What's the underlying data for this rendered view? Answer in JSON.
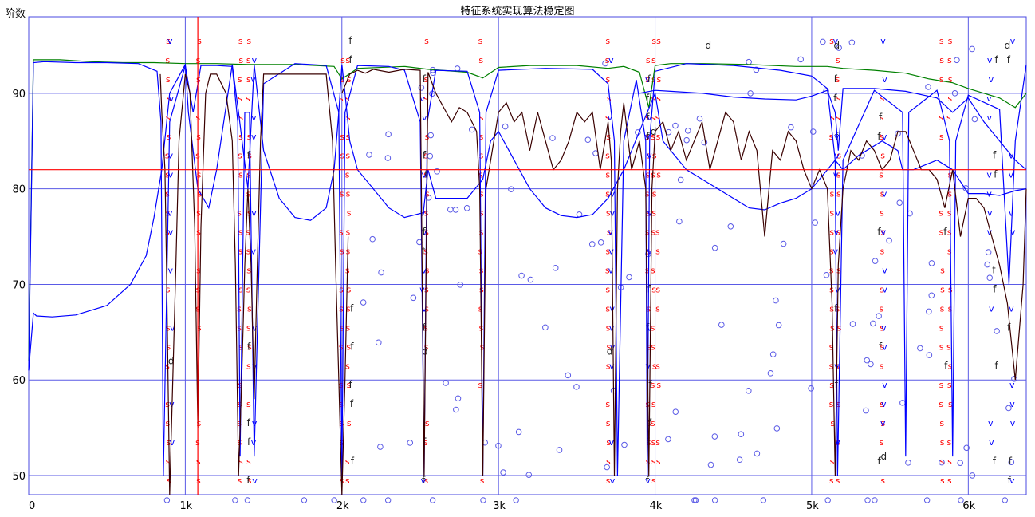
{
  "chart_data": {
    "type": "line",
    "title": "特征系统实现算法稳定图",
    "ylabel": "阶数",
    "xlabel": "",
    "xlim": [
      0,
      6370
    ],
    "ylim": [
      48,
      98
    ],
    "x_ticks": [
      0,
      1000,
      2000,
      3000,
      4000,
      5000,
      6000
    ],
    "x_tick_labels": [
      "0",
      "1k",
      "2k",
      "3k",
      "4k",
      "5k",
      "6k"
    ],
    "y_ticks": [
      50,
      60,
      70,
      80,
      90
    ],
    "y_tick_labels": [
      "50",
      "60",
      "70",
      "80",
      "90"
    ],
    "grid": true,
    "threshold_line": {
      "y": 82,
      "color": "#ff0000"
    },
    "red_vertical_line": {
      "x": 1080,
      "color": "#ff0000"
    },
    "series": [
      {
        "color": "#008000",
        "x": [
          0,
          30,
          200,
          400,
          600,
          800,
          1000,
          1200,
          1400,
          1700,
          1950,
          2000,
          2100,
          2400,
          2550,
          2800,
          2900,
          3000,
          3200,
          3500,
          3700,
          3800,
          3900,
          3960,
          4000,
          4100,
          4300,
          4600,
          4900,
          5100,
          5200,
          5400,
          5600,
          5750,
          5900,
          6000,
          6200,
          6300,
          6370
        ],
        "y": [
          62,
          93.5,
          93.5,
          93.3,
          93.2,
          93.2,
          93.1,
          93.1,
          93,
          93,
          92.8,
          91.5,
          92.6,
          92.8,
          92.5,
          92.2,
          91.6,
          92.7,
          92.9,
          92.9,
          92.6,
          92.8,
          92.2,
          88.5,
          92.9,
          93.1,
          93.1,
          93,
          92.8,
          92.8,
          92.6,
          92.4,
          92.1,
          91.5,
          91.1,
          90.5,
          89.5,
          88.5,
          90
        ]
      },
      {
        "color": "#0000ff",
        "x": [
          0,
          30,
          100,
          300,
          500,
          700,
          820,
          845,
          860,
          900,
          1000,
          1050,
          1100,
          1200,
          1300,
          1335,
          1350,
          1380,
          1410,
          1440,
          1500,
          1700,
          1900,
          1980,
          2000,
          2020,
          2100,
          2300,
          2400,
          2500,
          2525,
          2545,
          2600,
          2800,
          2880,
          2900,
          2920,
          3000,
          3300,
          3600,
          3700,
          3740,
          3760,
          3800,
          3880,
          3940,
          3950,
          3965,
          4000,
          4200,
          4500,
          4800,
          5000,
          5100,
          5150,
          5165,
          5200,
          5400,
          5580,
          5600,
          5620,
          5800,
          5880,
          5900,
          5920,
          6000,
          6200,
          6260,
          6300,
          6370
        ],
        "y": [
          61,
          93.2,
          93.3,
          93.2,
          93.2,
          93.1,
          92.3,
          87,
          50,
          87,
          92.9,
          88,
          92.9,
          92.9,
          92.8,
          87,
          52,
          88,
          88,
          52,
          91,
          93.1,
          92.9,
          88,
          50,
          88,
          92.9,
          92.8,
          92.4,
          87,
          50,
          87,
          92.4,
          92.3,
          88,
          50,
          88,
          92.4,
          92.6,
          92.5,
          91,
          85,
          50,
          85,
          91.4,
          85,
          50,
          85,
          92.3,
          93.1,
          92.9,
          92.4,
          91.8,
          90.5,
          83,
          50,
          83,
          90.3,
          88,
          52,
          88,
          90.3,
          85,
          52,
          85,
          89.8,
          88.3,
          70,
          85,
          93
        ]
      },
      {
        "color": "#0000ff",
        "x": [
          0,
          30,
          50,
          150,
          300,
          500,
          650,
          750,
          800,
          850,
          900,
          1000,
          1020,
          1080,
          1150,
          1200,
          1300,
          1340,
          1400,
          1440,
          1500,
          1600,
          1700,
          1800,
          1900,
          1950,
          1980,
          2000,
          2020,
          2050,
          2100,
          2200,
          2300,
          2400,
          2520,
          2550,
          2600,
          2800,
          2900,
          2950,
          3000,
          3100,
          3200,
          3300,
          3400,
          3500,
          3600,
          3700,
          3800,
          3900,
          4000,
          4050,
          4200,
          4400,
          4600,
          4700,
          4800,
          4900,
          5000,
          5100,
          5150,
          5200,
          5300,
          5450,
          5550,
          5580,
          5600,
          5650,
          5800,
          5900,
          6000,
          6100,
          6200,
          6300,
          6370
        ],
        "y": [
          61,
          67,
          66.7,
          66.6,
          66.8,
          67.8,
          70,
          73,
          77,
          82,
          90,
          93,
          88,
          80,
          78,
          82,
          93,
          88,
          80,
          93,
          84,
          79,
          77,
          76.7,
          78,
          82,
          88,
          93,
          90,
          85,
          82,
          80,
          78,
          77,
          77.5,
          82,
          79,
          79,
          81,
          85,
          86,
          83,
          80,
          78,
          77.2,
          77,
          77.3,
          79,
          82,
          86,
          90,
          85,
          82,
          80,
          78,
          77.8,
          78.5,
          79,
          80,
          82,
          83,
          82,
          83.5,
          85,
          84,
          82,
          82,
          82,
          83,
          82,
          79.5,
          79.5,
          79.3,
          79.8,
          80
        ]
      },
      {
        "color": "#0000ff",
        "x": [
          3900,
          4000,
          4100,
          4300,
          4500,
          4700,
          4900,
          5000,
          5100,
          5150,
          5170,
          5200,
          5400,
          5600,
          5800,
          5900,
          6000,
          6100,
          6200,
          6300,
          6370
        ],
        "y": [
          90,
          90.3,
          90.2,
          90,
          89.6,
          89.4,
          89.3,
          89.7,
          90.3,
          88,
          84,
          90.5,
          90.5,
          90.2,
          89.5,
          88,
          89.5,
          87,
          85,
          83,
          82
        ]
      },
      {
        "color": "#3a0000",
        "x": [
          2000,
          2050,
          2100,
          2150,
          2200,
          2300,
          2400,
          2500,
          2525,
          2550,
          2600,
          2700,
          2750,
          2800,
          2860,
          2880,
          2900,
          2920,
          3000,
          3050,
          3100,
          3150,
          3200,
          3250,
          3300,
          3350,
          3400,
          3450,
          3500,
          3550,
          3600,
          3650,
          3700,
          3720,
          3740,
          3760,
          3780,
          3800,
          3850,
          3900,
          3940,
          3960,
          3980,
          4000,
          4050,
          4100,
          4150,
          4200,
          4250,
          4300,
          4350,
          4400,
          4450,
          4500,
          4550,
          4600,
          4650,
          4700,
          4750,
          4800,
          4850,
          4900,
          4950,
          5000,
          5050,
          5100,
          5130,
          5150,
          5170,
          5200,
          5250,
          5300,
          5350,
          5400,
          5450,
          5500,
          5550,
          5600,
          5650,
          5700,
          5750,
          5800,
          5850,
          5900,
          5950,
          6000,
          6050,
          6100,
          6150,
          6200,
          6250,
          6300,
          6350,
          6370
        ],
        "y": [
          90,
          92,
          92.4,
          92.1,
          92.5,
          92.2,
          92.5,
          92.4,
          50,
          92.2,
          90,
          87,
          88.5,
          88,
          86,
          80,
          50,
          80,
          88,
          89,
          87,
          88,
          84,
          88,
          85,
          82,
          83,
          85,
          88,
          87,
          88,
          82,
          87,
          83,
          50,
          80,
          86,
          89,
          82,
          85,
          80,
          50,
          80,
          86,
          87,
          84,
          86,
          83,
          85,
          87,
          82,
          85,
          88,
          87,
          83,
          86,
          84,
          75,
          84,
          83,
          86,
          85,
          82,
          80,
          82,
          80,
          68,
          50,
          72,
          80,
          84,
          83,
          85,
          84,
          82,
          83,
          86,
          86,
          84,
          82,
          82,
          81,
          78,
          82,
          75,
          79,
          79,
          78,
          75,
          72,
          68,
          60,
          70,
          80
        ]
      },
      {
        "color": "#3a0000",
        "x": [
          840,
          850,
          870,
          880,
          890,
          900,
          920,
          940,
          960,
          1000,
          1030,
          1060,
          1080,
          1100,
          1130,
          1160,
          1200,
          1260,
          1300,
          1320,
          1340,
          1360,
          1380,
          1400,
          1420,
          1440,
          1460,
          1480,
          1500,
          1900,
          1940,
          1960,
          1980,
          2000,
          2020,
          2040
        ],
        "y": [
          92,
          88,
          82,
          72,
          60,
          48,
          60,
          72,
          85,
          92,
          90,
          76,
          55,
          76,
          90,
          92,
          92,
          90,
          85,
          72,
          50,
          60,
          72,
          80,
          72,
          58,
          72,
          85,
          92,
          92,
          85,
          72,
          60,
          48,
          60,
          75
        ]
      }
    ],
    "markers_s": [
      "S",
      "S",
      "S",
      "S",
      "S",
      "S",
      "S",
      "S",
      "S",
      "S",
      "S",
      "S",
      "S",
      "S",
      "S",
      "S",
      "S",
      "S",
      "S",
      "S"
    ],
    "markers_v": [
      "V",
      "V",
      "V",
      "V",
      "V",
      "V",
      "V",
      "V",
      "V",
      "V",
      "V",
      "V"
    ],
    "markers_f": [
      "F",
      "F",
      "F",
      "F",
      "F",
      "F",
      "F",
      "F"
    ],
    "markers_d": [
      "D",
      "D",
      "D",
      "D"
    ],
    "markers_o": [
      "O",
      "O",
      "O",
      "O",
      "O",
      "O",
      "O",
      "O",
      "O",
      "O",
      "O",
      "O",
      "O",
      "O",
      "O",
      "O"
    ]
  }
}
